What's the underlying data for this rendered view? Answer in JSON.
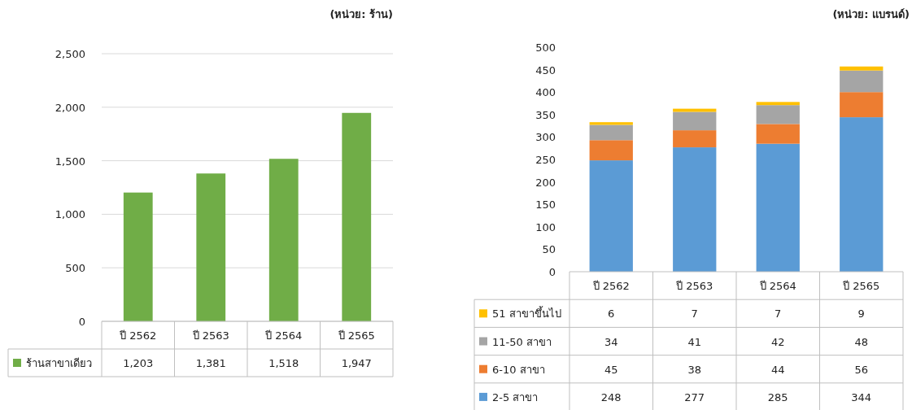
{
  "chart_data": [
    {
      "type": "bar",
      "annotations": [
        "(หน่วย: ร้าน)"
      ],
      "categories": [
        "ปี 2562",
        "ปี 2563",
        "ปี 2564",
        "ปี 2565"
      ],
      "series": [
        {
          "name": "ร้านสาขาเดียว",
          "color": "#70ad47",
          "values": [
            1203,
            1381,
            1518,
            1947
          ],
          "value_labels": [
            "1,203",
            "1,381",
            "1,518",
            "1,947"
          ]
        }
      ],
      "ylim": [
        0,
        2500
      ],
      "yticks": [
        0,
        {
          "value": 500,
          "label": "500"
        },
        {
          "value": 1000,
          "label": "1,000"
        },
        {
          "value": 1500,
          "label": "1,500"
        },
        {
          "value": 2000,
          "label": "2,000"
        },
        {
          "value": 2500,
          "label": "2,500"
        }
      ],
      "grid": "y",
      "legend": "bottom"
    },
    {
      "type": "bar",
      "stacked": true,
      "annotations": [
        "(หน่วย: แบรนด์)"
      ],
      "categories": [
        "ปี 2562",
        "ปี 2563",
        "ปี 2564",
        "ปี 2565"
      ],
      "series": [
        {
          "name": "2-5 สาขา",
          "color": "#5b9bd5",
          "values": [
            248,
            277,
            285,
            344
          ]
        },
        {
          "name": "6-10 สาขา",
          "color": "#ed7d31",
          "values": [
            45,
            38,
            44,
            56
          ]
        },
        {
          "name": "11-50 สาขา",
          "color": "#a5a5a5",
          "values": [
            34,
            41,
            42,
            48
          ]
        },
        {
          "name": "51 สาขาขึ้นไป",
          "color": "#ffc000",
          "values": [
            6,
            7,
            7,
            9
          ]
        }
      ],
      "ylim": [
        0,
        500
      ],
      "yticks": [
        0,
        50,
        100,
        150,
        200,
        250,
        300,
        350,
        400,
        450,
        500
      ],
      "data_labels": true,
      "legend": "bottom"
    }
  ]
}
